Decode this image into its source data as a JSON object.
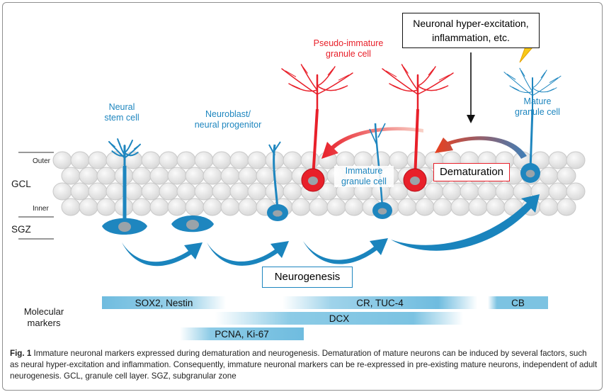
{
  "labels": {
    "outer": "Outer",
    "inner": "Inner",
    "gcl": "GCL",
    "sgz": "SGZ",
    "neural_stem_cell": "Neural\nstem cell",
    "neuroblast": "Neuroblast/\nneural progenitor",
    "immature_granule": "Immature\ngranule cell",
    "pseudo_immature": "Pseudo-immature\ngranule cell",
    "mature_granule": "Mature\ngranule cell",
    "trigger_box": "Neuronal hyper-excitation,\ninflammation, etc.",
    "dematuration": "Dematuration",
    "neurogenesis": "Neurogenesis",
    "molecular_markers": "Molecular\nmarkers"
  },
  "markers": {
    "sox2": "SOX2, Nestin",
    "cr": "CR, TUC-4",
    "cb": "CB",
    "dcx": "DCX",
    "pcna": "PCNA, Ki-67"
  },
  "caption": {
    "label": "Fig. 1",
    "text": " Immature neuronal markers expressed during dematuration and neurogenesis. Dematuration of mature neurons can be induced by several factors, such as neural hyper-excitation and inflammation. Consequently, immature neuronal markers can be re-expressed in pre-existing mature neurons, independent of adult neurogenesis. GCL, granule cell layer. SGZ, subgranular zone"
  },
  "colors": {
    "neuron_blue": "#1e86bf",
    "neuron_red": "#e8202a",
    "arrow_red": "#ea4a25",
    "bar_blue": "#8ccbe6",
    "cell_gray": "#e6e6e6"
  },
  "icons": [
    "lightning-icon"
  ]
}
